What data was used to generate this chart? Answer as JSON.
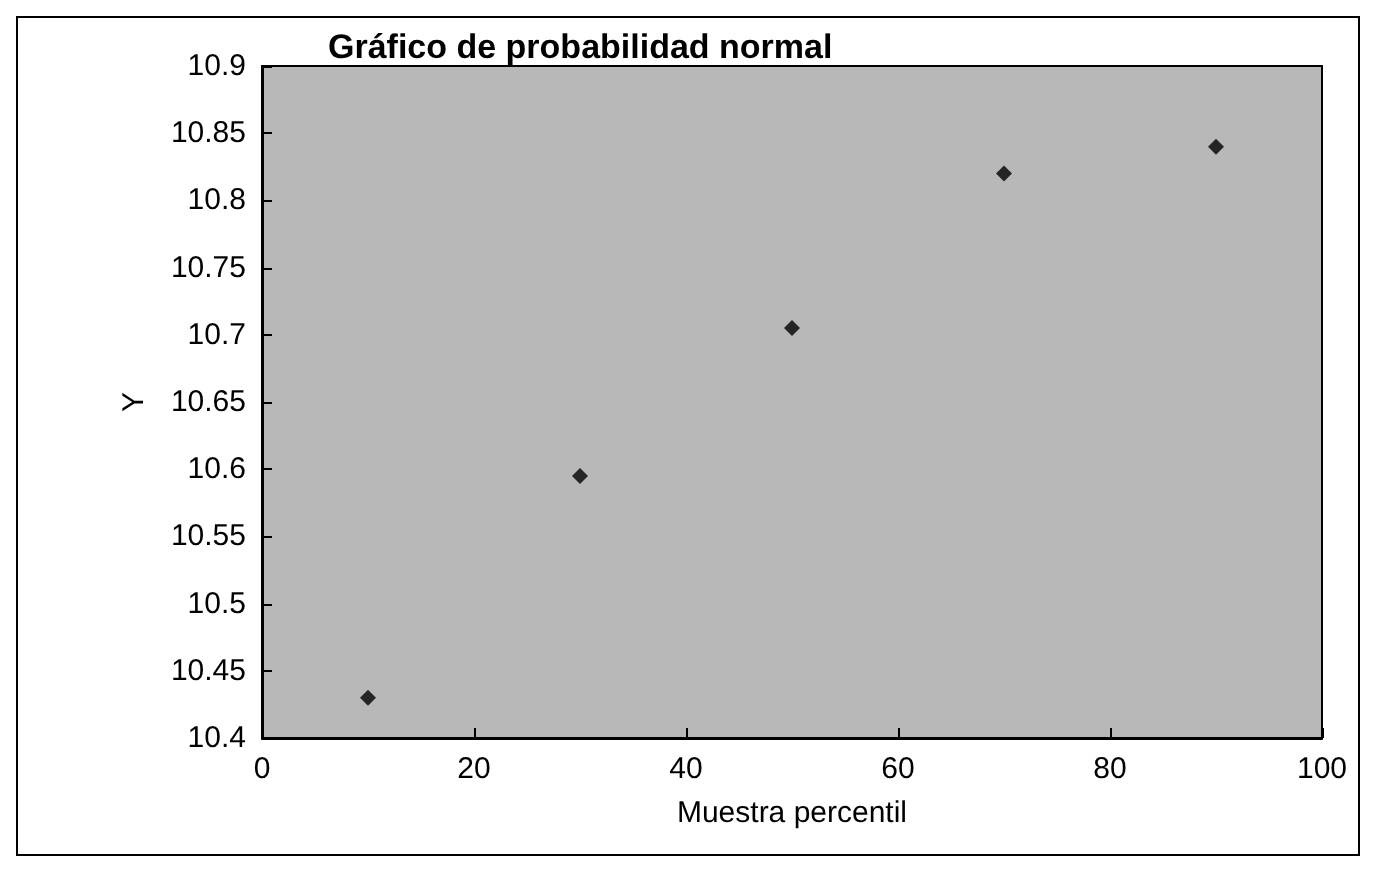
{
  "chart_data": {
    "type": "scatter",
    "title": "Gráfico de probabilidad normal",
    "xlabel": "Muestra percentil",
    "ylabel": "Y",
    "x": [
      10,
      30,
      50,
      70,
      90
    ],
    "series": [
      {
        "color": "#000000",
        "values": [
          10.43,
          10.595,
          10.705,
          10.82,
          10.84
        ]
      }
    ],
    "xlim": [
      0,
      100
    ],
    "xticks": [
      0,
      20,
      40,
      60,
      80,
      100
    ],
    "ylim": [
      10.4,
      10.9
    ],
    "yticks": [
      10.4,
      10.45,
      10.5,
      10.55,
      10.6,
      10.65,
      10.7,
      10.75,
      10.8,
      10.85,
      10.9
    ],
    "marker": "diamond",
    "grid": false
  }
}
